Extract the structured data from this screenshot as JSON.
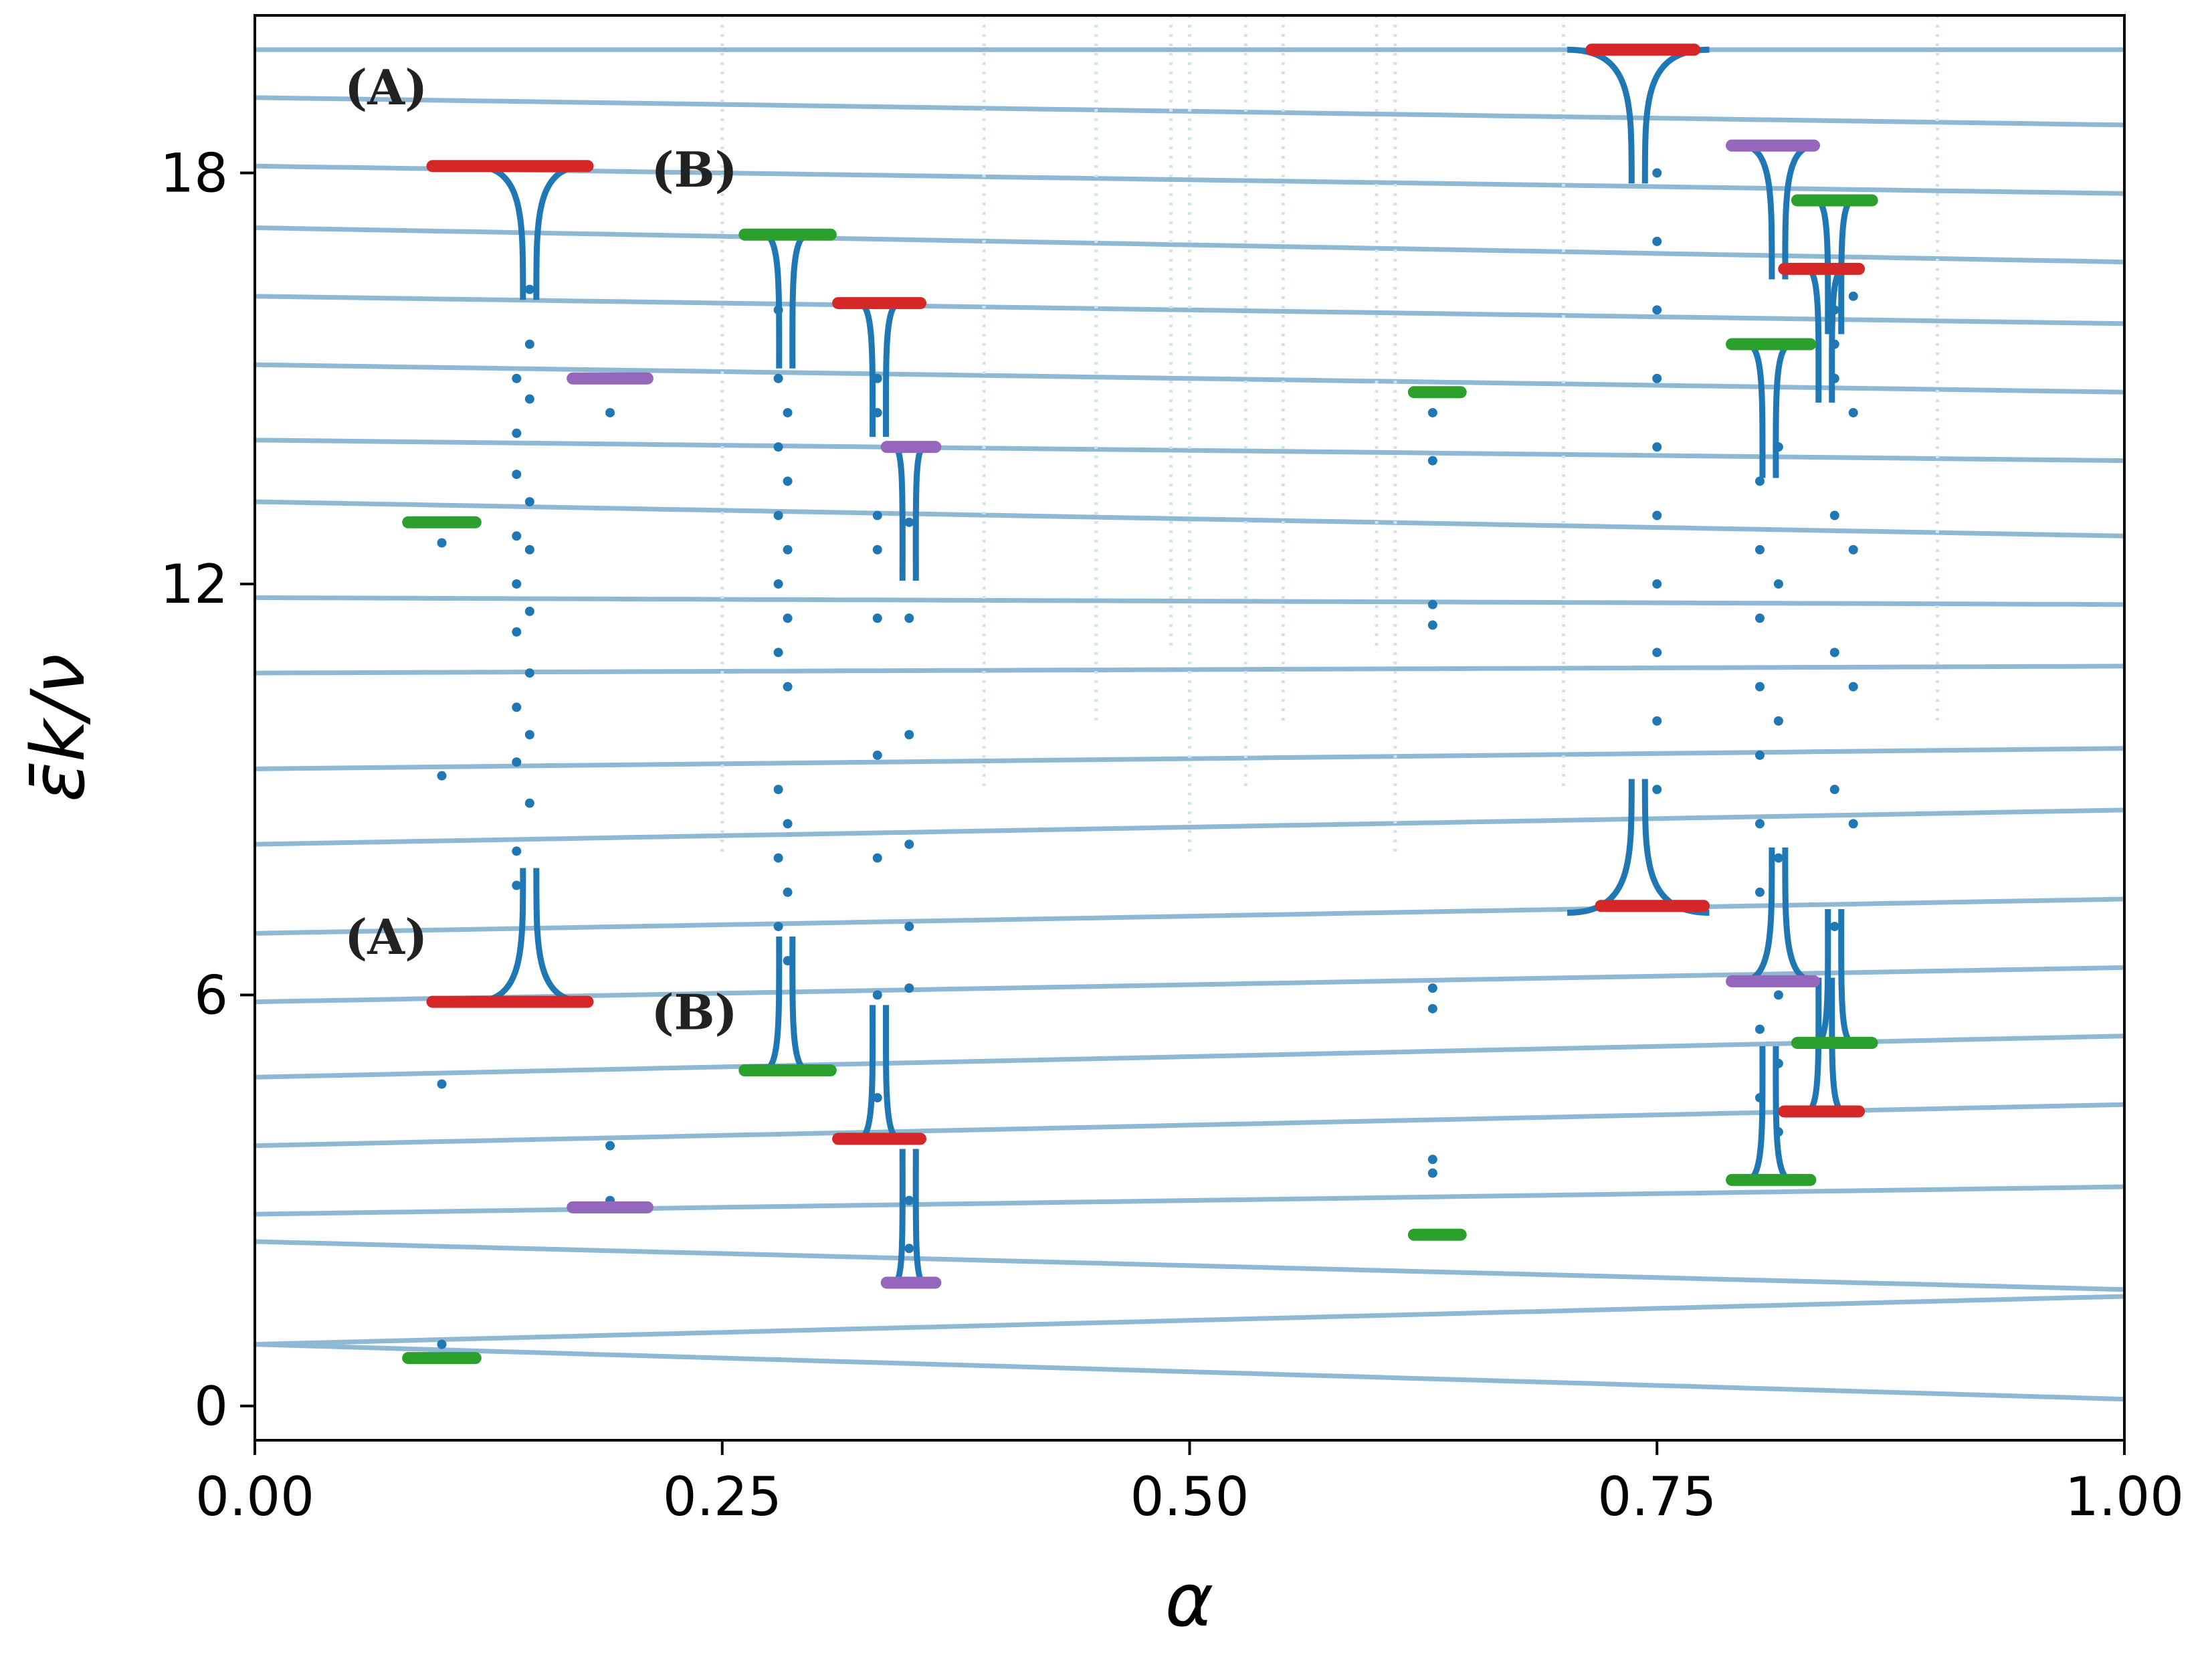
{
  "chart_data": {
    "type": "line",
    "title": "",
    "xlabel": "α",
    "ylabel": "ε̄k/ν",
    "xlim": [
      0.0,
      1.0
    ],
    "ylim": [
      -0.5,
      20.3
    ],
    "xticks": [
      0.0,
      0.25,
      0.5,
      0.75,
      1.0
    ],
    "xtick_labels": [
      "0.00",
      "0.25",
      "0.50",
      "0.75",
      "1.00"
    ],
    "yticks": [
      0,
      6,
      12,
      18
    ],
    "ytick_labels": [
      "0",
      "6",
      "12",
      "18"
    ],
    "grid": false,
    "colors": {
      "band": "#8fb8d4",
      "band_faint": "#cfe2ee",
      "dots": "#1f77b4",
      "red": "#d62728",
      "green": "#2ca02c",
      "purple": "#9467bd"
    },
    "bands": [
      {
        "y0": 0.9,
        "y1": 0.1
      },
      {
        "y0": 0.9,
        "y1": 1.6
      },
      {
        "y0": 2.4,
        "y1": 1.7
      },
      {
        "y0": 2.8,
        "y1": 3.2
      },
      {
        "y0": 3.8,
        "y1": 4.4
      },
      {
        "y0": 4.8,
        "y1": 5.4
      },
      {
        "y0": 5.9,
        "y1": 6.4
      },
      {
        "y0": 6.9,
        "y1": 7.4
      },
      {
        "y0": 8.2,
        "y1": 8.7
      },
      {
        "y0": 9.3,
        "y1": 9.6
      },
      {
        "y0": 10.7,
        "y1": 10.8
      },
      {
        "y0": 11.8,
        "y1": 11.7
      },
      {
        "y0": 13.2,
        "y1": 12.7
      },
      {
        "y0": 14.1,
        "y1": 13.8
      },
      {
        "y0": 15.2,
        "y1": 14.8
      },
      {
        "y0": 16.2,
        "y1": 15.8
      },
      {
        "y0": 17.2,
        "y1": 16.7
      },
      {
        "y0": 18.1,
        "y1": 17.7
      },
      {
        "y0": 19.1,
        "y1": 18.7
      },
      {
        "y0": 19.8,
        "y1": 19.8
      }
    ],
    "wedges": [
      {
        "x": 0.147,
        "y_bottom": 5.9,
        "y_top": 18.1,
        "w": 0.03
      },
      {
        "x": 0.284,
        "y_bottom": 4.9,
        "y_top": 17.1,
        "w": 0.012
      },
      {
        "x": 0.334,
        "y_bottom": 3.9,
        "y_top": 16.1,
        "w": 0.011
      },
      {
        "x": 0.35,
        "y_bottom": 1.8,
        "y_top": 14.0,
        "w": 0.008
      },
      {
        "x": 0.74,
        "y_bottom": 7.2,
        "y_top": 19.8,
        "w": 0.038
      },
      {
        "x": 0.815,
        "y_bottom": 6.2,
        "y_top": 18.4,
        "w": 0.02
      },
      {
        "x": 0.81,
        "y_bottom": 3.3,
        "y_top": 15.5,
        "w": 0.012
      },
      {
        "x": 0.845,
        "y_bottom": 5.3,
        "y_top": 17.6,
        "w": 0.01
      },
      {
        "x": 0.84,
        "y_bottom": 4.3,
        "y_top": 16.6,
        "w": 0.01
      }
    ],
    "scatter_columns": [
      {
        "x": 0.1,
        "values": [
          0.9,
          9.2,
          4.7,
          12.6,
          12.9
        ]
      },
      {
        "x": 0.14,
        "values": [
          12.7,
          12.0,
          10.2,
          9.4,
          8.1,
          7.6,
          11.3,
          13.6,
          14.2,
          15.0
        ]
      },
      {
        "x": 0.147,
        "values": [
          13.2,
          11.6,
          9.8,
          8.8,
          10.7,
          12.5,
          14.7,
          15.5,
          16.3
        ]
      },
      {
        "x": 0.19,
        "values": [
          14.5,
          3.8,
          15.0,
          3.0
        ]
      },
      {
        "x": 0.28,
        "values": [
          13.0,
          11.0,
          9.0,
          7.0,
          8.0,
          12.0,
          14.0,
          15.0,
          16.0
        ]
      },
      {
        "x": 0.285,
        "values": [
          12.5,
          10.5,
          8.5,
          7.5,
          6.5,
          11.5,
          13.5,
          14.5
        ]
      },
      {
        "x": 0.333,
        "values": [
          13.0,
          11.5,
          9.5,
          8.0,
          6.0,
          4.5,
          12.5,
          14.5,
          15.0
        ]
      },
      {
        "x": 0.35,
        "values": [
          11.5,
          9.8,
          6.1,
          3.0,
          2.3,
          7.0,
          8.2,
          12.9
        ]
      },
      {
        "x": 0.63,
        "values": [
          14.5,
          13.8,
          11.7,
          11.4,
          6.1,
          5.8,
          3.6,
          3.4
        ]
      },
      {
        "x": 0.75,
        "values": [
          9.0,
          10.0,
          11.0,
          12.0,
          13.0,
          14.0,
          15.0,
          16.0,
          17.0,
          18.0
        ]
      },
      {
        "x": 0.805,
        "values": [
          13.5,
          12.5,
          11.5,
          10.5,
          9.5,
          8.5,
          7.5,
          5.5,
          4.5
        ]
      },
      {
        "x": 0.815,
        "values": [
          14.0,
          12.0,
          10.0,
          8.0,
          6.0,
          5.0,
          4.0
        ]
      },
      {
        "x": 0.845,
        "values": [
          13.0,
          11.0,
          9.0,
          7.0,
          15.0,
          16.0,
          15.5
        ]
      },
      {
        "x": 0.855,
        "values": [
          12.5,
          10.5,
          8.5,
          14.5,
          16.2
        ]
      }
    ],
    "markers": [
      {
        "color": "red",
        "x0": 0.095,
        "x1": 0.178,
        "y": 18.1
      },
      {
        "color": "red",
        "x0": 0.095,
        "x1": 0.178,
        "y": 5.9
      },
      {
        "color": "purple",
        "x0": 0.17,
        "x1": 0.21,
        "y": 15.0
      },
      {
        "color": "purple",
        "x0": 0.17,
        "x1": 0.21,
        "y": 2.9
      },
      {
        "color": "green",
        "x0": 0.082,
        "x1": 0.118,
        "y": 12.9
      },
      {
        "color": "green",
        "x0": 0.082,
        "x1": 0.118,
        "y": 0.7
      },
      {
        "color": "green",
        "x0": 0.262,
        "x1": 0.308,
        "y": 17.1
      },
      {
        "color": "green",
        "x0": 0.262,
        "x1": 0.308,
        "y": 4.9
      },
      {
        "color": "red",
        "x0": 0.312,
        "x1": 0.356,
        "y": 16.1
      },
      {
        "color": "red",
        "x0": 0.312,
        "x1": 0.356,
        "y": 3.9
      },
      {
        "color": "purple",
        "x0": 0.338,
        "x1": 0.364,
        "y": 14.0
      },
      {
        "color": "purple",
        "x0": 0.338,
        "x1": 0.364,
        "y": 1.8
      },
      {
        "color": "green",
        "x0": 0.62,
        "x1": 0.645,
        "y": 14.8
      },
      {
        "color": "green",
        "x0": 0.62,
        "x1": 0.645,
        "y": 2.5
      },
      {
        "color": "red",
        "x0": 0.715,
        "x1": 0.77,
        "y": 19.8
      },
      {
        "color": "red",
        "x0": 0.72,
        "x1": 0.775,
        "y": 7.3
      },
      {
        "color": "purple",
        "x0": 0.79,
        "x1": 0.834,
        "y": 18.4
      },
      {
        "color": "purple",
        "x0": 0.79,
        "x1": 0.834,
        "y": 6.2
      },
      {
        "color": "green",
        "x0": 0.79,
        "x1": 0.832,
        "y": 15.5
      },
      {
        "color": "green",
        "x0": 0.79,
        "x1": 0.832,
        "y": 3.3
      },
      {
        "color": "green",
        "x0": 0.825,
        "x1": 0.865,
        "y": 17.6
      },
      {
        "color": "green",
        "x0": 0.825,
        "x1": 0.865,
        "y": 5.3
      },
      {
        "color": "red",
        "x0": 0.818,
        "x1": 0.858,
        "y": 16.6
      },
      {
        "color": "red",
        "x0": 0.818,
        "x1": 0.858,
        "y": 4.3
      }
    ],
    "annotations": [
      {
        "text": "(A)",
        "x": 0.048,
        "y": 19.0
      },
      {
        "text": "(A)",
        "x": 0.048,
        "y": 6.6
      },
      {
        "text": "(B)",
        "x": 0.212,
        "y": 17.8
      },
      {
        "text": "(B)",
        "x": 0.212,
        "y": 5.5
      }
    ]
  }
}
